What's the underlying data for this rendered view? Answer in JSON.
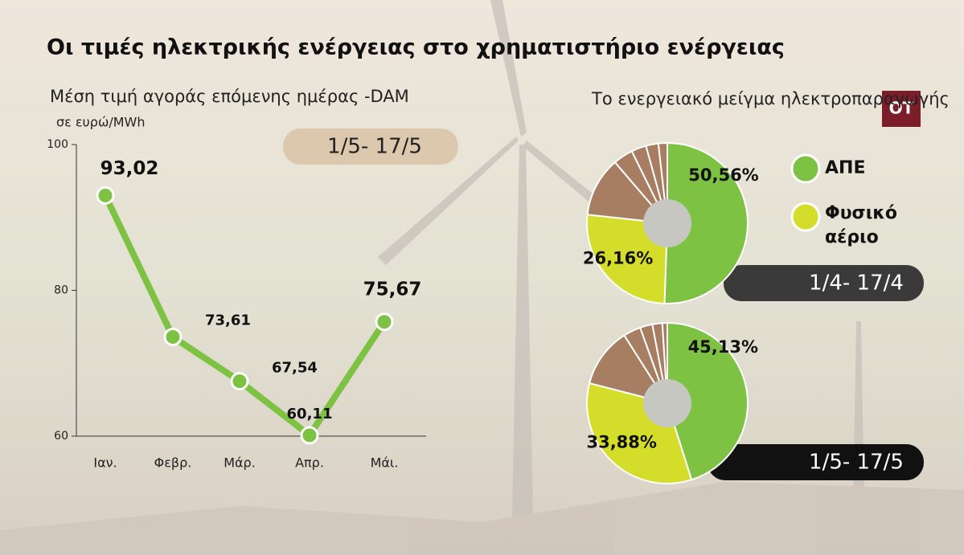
{
  "title": "Οι τιμές ηλεκτρικής ενέργειας στο χρηματιστήριο ενέργειας",
  "logo": "OT",
  "legend": [
    {
      "name": "ΑΠΕ",
      "color": "#7dc242"
    },
    {
      "name": "Φυσικό αέριο",
      "color": "#d4de2a"
    }
  ],
  "chart_data": [
    {
      "type": "line",
      "title": "Μέση τιμή αγοράς επόμενης ημέρας -DAM",
      "subtitle": "σε ευρώ/MWh",
      "period": "1/5- 17/5",
      "categories": [
        "Ιαν.",
        "Φεβρ.",
        "Μάρ.",
        "Απρ.",
        "Μάι."
      ],
      "values": [
        93.02,
        73.61,
        67.54,
        60.11,
        75.67
      ],
      "value_labels": [
        "93,02",
        "73,61",
        "67,54",
        "60,11",
        "75,67"
      ],
      "color": "#7dc242",
      "ylim": [
        60,
        100
      ],
      "yticks": [
        60,
        80,
        100
      ]
    },
    {
      "type": "pie",
      "title": "Το ενεργειακό μείγμα ηλεκτροπαραγωγής",
      "period": "1/4- 17/4",
      "values": [
        50.56,
        26.16,
        12,
        4,
        3,
        2.5,
        1.78
      ],
      "value_labels": [
        "50,56%",
        "26,16%",
        null,
        null,
        null,
        null,
        null
      ],
      "colors": [
        "#7dc242",
        "#d4de2a",
        "#a87e62",
        "#a87e62",
        "#a87e62",
        "#a87e62",
        "#a87e62"
      ]
    },
    {
      "type": "pie",
      "period": "1/5- 17/5",
      "values": [
        45.13,
        33.88,
        12,
        3.5,
        2.5,
        2,
        0.99
      ],
      "value_labels": [
        "45,13%",
        "33,88%",
        null,
        null,
        null,
        null,
        null
      ],
      "colors": [
        "#7dc242",
        "#d4de2a",
        "#a87e62",
        "#a87e62",
        "#a87e62",
        "#a87e62",
        "#a87e62"
      ]
    }
  ]
}
